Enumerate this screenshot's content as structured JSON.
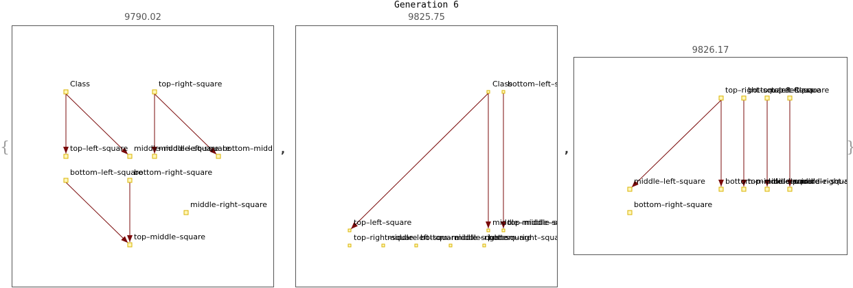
{
  "title": "Generation 6",
  "brace_open": "{",
  "brace_close": "}",
  "separator": ",",
  "colors": {
    "edge": "#7a0a0a",
    "node_fill": "#fff6b8",
    "node_stroke": "#d9b300"
  },
  "panels": [
    {
      "score": "9790.02",
      "nodes": [
        {
          "label": "Class"
        },
        {
          "label": "top–right–square"
        },
        {
          "label": "top–left–square"
        },
        {
          "label": "middle–middle–square"
        },
        {
          "label": "middle–left–square"
        },
        {
          "label": "bottom–middle–square"
        },
        {
          "label": "bottom–left–square"
        },
        {
          "label": "bottom–right–square"
        },
        {
          "label": "middle–right–square"
        },
        {
          "label": "top–middle–square"
        }
      ],
      "edges": [
        {
          "from": "Class",
          "to": "top–left–square"
        },
        {
          "from": "Class",
          "to": "middle–middle–square"
        },
        {
          "from": "top–right–square",
          "to": "middle–left–square"
        },
        {
          "from": "top–right–square",
          "to": "bottom–middle–square"
        },
        {
          "from": "bottom–left–square",
          "to": "top–middle–square"
        },
        {
          "from": "bottom–right–square",
          "to": "top–middle–square"
        }
      ]
    },
    {
      "score": "9825.75",
      "nodes": [
        {
          "label": "Class"
        },
        {
          "label": "bottom–left–square"
        },
        {
          "label": "top–left–square"
        },
        {
          "label": "middle–middle–square"
        },
        {
          "label": "top–middle–square"
        },
        {
          "label": "top–right–square"
        },
        {
          "label": "middle–left–square"
        },
        {
          "label": "bottom–middle–square"
        },
        {
          "label": "middle–right–square"
        },
        {
          "label": "bottom–right–square"
        }
      ],
      "edges": [
        {
          "from": "Class",
          "to": "top–left–square"
        },
        {
          "from": "Class",
          "to": "middle–middle–square"
        },
        {
          "from": "bottom–left–square",
          "to": "top–middle–square"
        }
      ]
    },
    {
      "score": "9826.17",
      "nodes": [
        {
          "label": "top–right–square"
        },
        {
          "label": "bottom–left–square"
        },
        {
          "label": "top–left–square"
        },
        {
          "label": "Class"
        },
        {
          "label": "middle–left–square"
        },
        {
          "label": "bottom–middle–square"
        },
        {
          "label": "top–middle–square"
        },
        {
          "label": "middle–middle–square"
        },
        {
          "label": "middle–right–square"
        },
        {
          "label": "bottom–right–square"
        }
      ],
      "edges": [
        {
          "from": "top–right–square",
          "to": "middle–left–square"
        },
        {
          "from": "top–right–square",
          "to": "bottom–middle–square"
        },
        {
          "from": "bottom–left–square",
          "to": "top–middle–square"
        },
        {
          "from": "top–left–square",
          "to": "middle–middle–square"
        },
        {
          "from": "Class",
          "to": "middle–right–square"
        }
      ]
    }
  ]
}
